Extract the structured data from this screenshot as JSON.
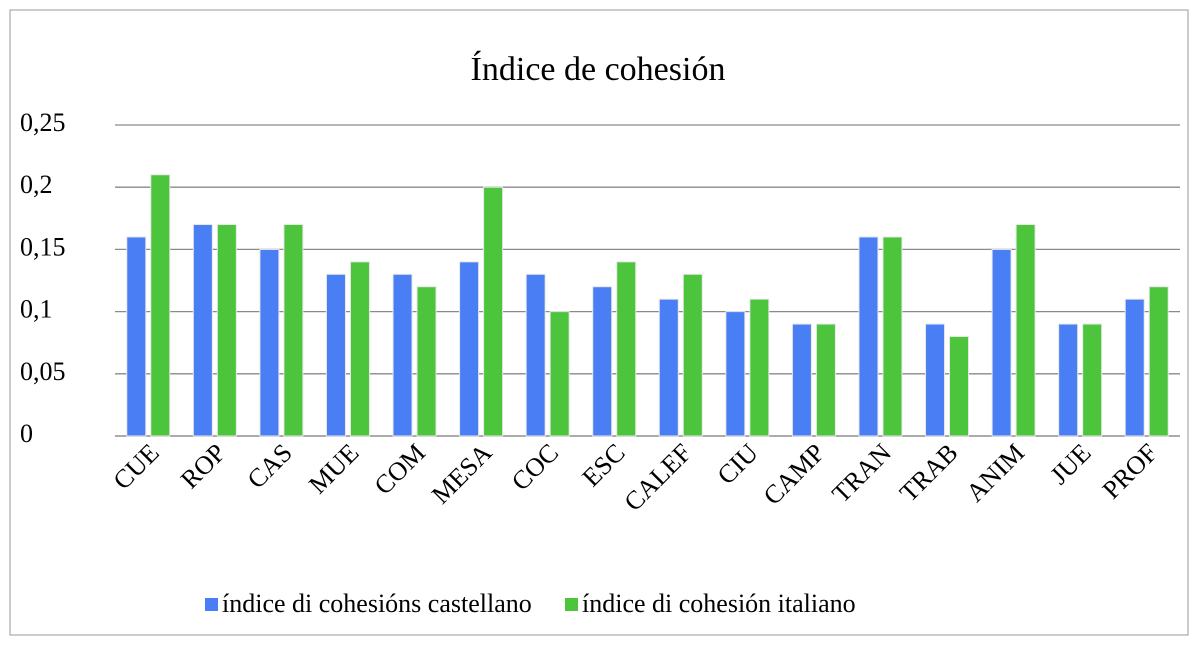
{
  "chart_data": {
    "type": "bar",
    "title": "Índice de cohesión",
    "categories": [
      "CUE",
      "ROP",
      "CAS",
      "MUE",
      "COM",
      "MESA",
      "COC",
      "ESC",
      "CALEF",
      "CIU",
      "CAMP",
      "TRAN",
      "TRAB",
      "ANIM",
      "JUE",
      "PROF"
    ],
    "series": [
      {
        "name": "índice di cohesións castellano",
        "color": "#4a7ef5",
        "values": [
          0.16,
          0.17,
          0.15,
          0.13,
          0.13,
          0.14,
          0.13,
          0.12,
          0.11,
          0.1,
          0.09,
          0.16,
          0.09,
          0.15,
          0.09,
          0.11
        ]
      },
      {
        "name": "índice di cohesión italiano",
        "color": "#4cc43c",
        "values": [
          0.21,
          0.17,
          0.17,
          0.14,
          0.12,
          0.2,
          0.1,
          0.14,
          0.13,
          0.11,
          0.09,
          0.16,
          0.08,
          0.17,
          0.09,
          0.12
        ]
      }
    ],
    "ylim": [
      0,
      0.25
    ],
    "yticks": [
      0,
      {
        "value": 0.05,
        "label": "0,05"
      },
      {
        "value": 0.1,
        "label": "0,1"
      },
      {
        "value": 0.15,
        "label": "0,15"
      },
      {
        "value": 0.2,
        "label": "0,2"
      },
      {
        "value": 0.25,
        "label": "0,25"
      }
    ],
    "grid": true,
    "legend": "bottom"
  }
}
